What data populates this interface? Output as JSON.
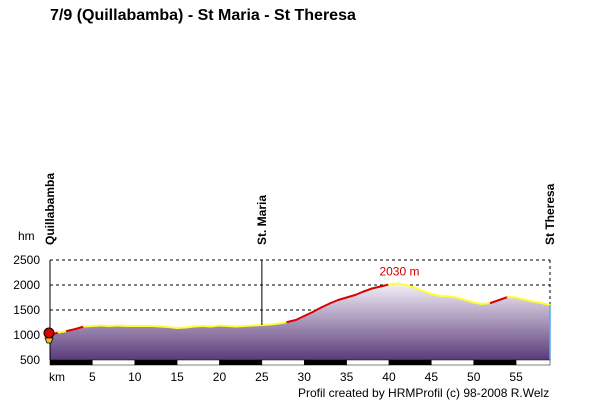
{
  "chart_data": {
    "type": "area",
    "title": "7/9 (Quillabamba) - St Maria - St Theresa",
    "ylabel": "hm",
    "xlabel": "km",
    "xlim": [
      0,
      59
    ],
    "ylim": [
      500,
      2500
    ],
    "xticks": [
      "5",
      "10",
      "15",
      "20",
      "25",
      "30",
      "35",
      "40",
      "45",
      "50",
      "55"
    ],
    "yticks": [
      "2500",
      "2000",
      "1500",
      "1000",
      "500"
    ],
    "grid": true,
    "places": [
      {
        "name": "Quillabamba",
        "km": 0
      },
      {
        "name": "St. Maria",
        "km": 25
      },
      {
        "name": "St Theresa",
        "km": 59
      }
    ],
    "annotation": {
      "text": "2030 m",
      "km": 41,
      "elevation": 2030
    },
    "credit": "Profil created by HRMProfil (c) 98-2008 R.Welz",
    "colors": {
      "flat": "#ffff33",
      "climb": "#dd0000",
      "fill_top": "#ffffff",
      "fill_bottom": "#5a3a7a",
      "frame": "#000000"
    },
    "profile": [
      {
        "km": 0,
        "ele": 1000
      },
      {
        "km": 1,
        "ele": 1050
      },
      {
        "km": 2,
        "ele": 1080
      },
      {
        "km": 3,
        "ele": 1120
      },
      {
        "km": 4,
        "ele": 1170
      },
      {
        "km": 5,
        "ele": 1180
      },
      {
        "km": 6,
        "ele": 1190
      },
      {
        "km": 7,
        "ele": 1180
      },
      {
        "km": 8,
        "ele": 1190
      },
      {
        "km": 9,
        "ele": 1180
      },
      {
        "km": 10,
        "ele": 1180
      },
      {
        "km": 11,
        "ele": 1180
      },
      {
        "km": 12,
        "ele": 1180
      },
      {
        "km": 13,
        "ele": 1170
      },
      {
        "km": 14,
        "ele": 1160
      },
      {
        "km": 15,
        "ele": 1140
      },
      {
        "km": 16,
        "ele": 1150
      },
      {
        "km": 17,
        "ele": 1170
      },
      {
        "km": 18,
        "ele": 1180
      },
      {
        "km": 19,
        "ele": 1170
      },
      {
        "km": 20,
        "ele": 1190
      },
      {
        "km": 21,
        "ele": 1180
      },
      {
        "km": 22,
        "ele": 1170
      },
      {
        "km": 23,
        "ele": 1180
      },
      {
        "km": 24,
        "ele": 1190
      },
      {
        "km": 25,
        "ele": 1200
      },
      {
        "km": 26,
        "ele": 1210
      },
      {
        "km": 27,
        "ele": 1230
      },
      {
        "km": 28,
        "ele": 1260
      },
      {
        "km": 29,
        "ele": 1300
      },
      {
        "km": 30,
        "ele": 1380
      },
      {
        "km": 31,
        "ele": 1460
      },
      {
        "km": 32,
        "ele": 1550
      },
      {
        "km": 33,
        "ele": 1630
      },
      {
        "km": 34,
        "ele": 1700
      },
      {
        "km": 35,
        "ele": 1750
      },
      {
        "km": 36,
        "ele": 1800
      },
      {
        "km": 37,
        "ele": 1870
      },
      {
        "km": 38,
        "ele": 1930
      },
      {
        "km": 39,
        "ele": 1970
      },
      {
        "km": 40,
        "ele": 2010
      },
      {
        "km": 41,
        "ele": 2030
      },
      {
        "km": 42,
        "ele": 2000
      },
      {
        "km": 43,
        "ele": 1950
      },
      {
        "km": 44,
        "ele": 1880
      },
      {
        "km": 45,
        "ele": 1820
      },
      {
        "km": 46,
        "ele": 1780
      },
      {
        "km": 47,
        "ele": 1770
      },
      {
        "km": 48,
        "ele": 1750
      },
      {
        "km": 49,
        "ele": 1700
      },
      {
        "km": 50,
        "ele": 1650
      },
      {
        "km": 51,
        "ele": 1620
      },
      {
        "km": 52,
        "ele": 1640
      },
      {
        "km": 53,
        "ele": 1700
      },
      {
        "km": 54,
        "ele": 1760
      },
      {
        "km": 55,
        "ele": 1750
      },
      {
        "km": 56,
        "ele": 1710
      },
      {
        "km": 57,
        "ele": 1670
      },
      {
        "km": 58,
        "ele": 1640
      },
      {
        "km": 59,
        "ele": 1600
      }
    ]
  }
}
